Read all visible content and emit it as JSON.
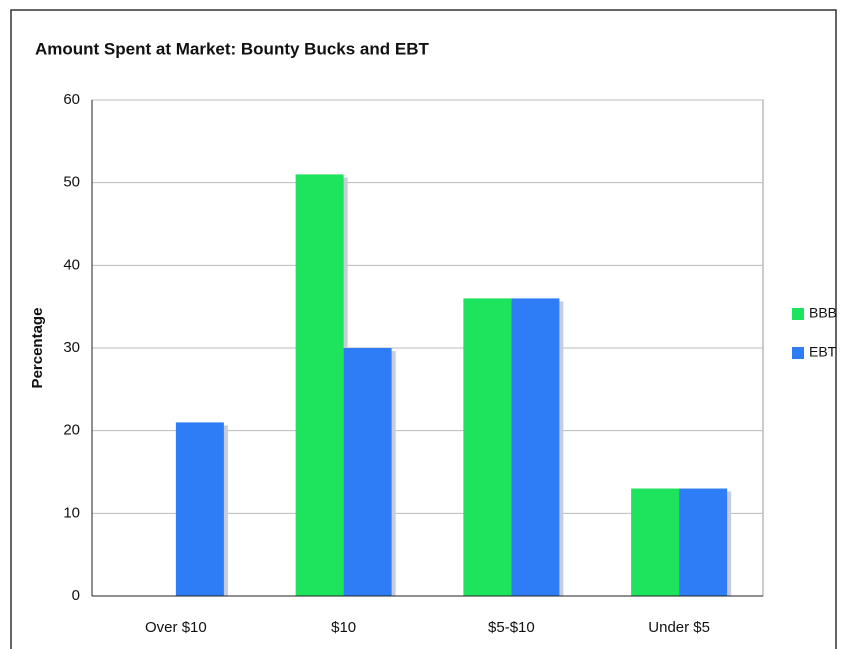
{
  "chart_data": {
    "type": "bar",
    "title": "Amount Spent at Market: Bounty Bucks and EBT",
    "ylabel": "Percentage",
    "categories": [
      "Over $10",
      "$10",
      "$5-$10",
      "Under $5"
    ],
    "series": [
      {
        "name": "BBB",
        "color": "#1ee35c",
        "values": [
          0,
          51,
          36,
          13
        ]
      },
      {
        "name": "EBT",
        "color": "#2e7cf6",
        "values": [
          21,
          30,
          36,
          13
        ]
      }
    ],
    "ylim": [
      0,
      60
    ],
    "yticks": [
      0,
      10,
      20,
      30,
      40,
      50,
      60
    ],
    "grid": true,
    "legend": "right"
  }
}
